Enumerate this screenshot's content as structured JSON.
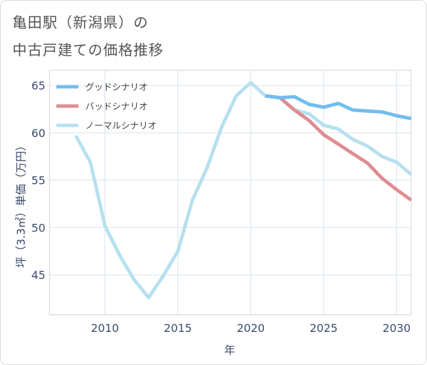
{
  "title": {
    "line1": "亀田駅（新潟県）の",
    "line2": "中古戸建ての価格推移"
  },
  "chart_data": {
    "type": "line",
    "title": "亀田駅（新潟県）の中古戸建ての価格推移",
    "xlabel": "年",
    "ylabel": "坪（3.3㎡）単価（万円）",
    "xlim": [
      2006.2,
      2031
    ],
    "ylim": [
      40.8,
      66.6
    ],
    "xticks": [
      2010,
      2015,
      2020,
      2025,
      2030
    ],
    "yticks": [
      45,
      50,
      55,
      60,
      65
    ],
    "grid": true,
    "legend_position": "top-left",
    "series": [
      {
        "name": "グッドシナリオ",
        "color": "#72bdf0",
        "x": [
          2021,
          2022,
          2023,
          2024,
          2025,
          2026,
          2027,
          2028,
          2029,
          2030,
          2031
        ],
        "y": [
          63.9,
          63.7,
          63.8,
          63.0,
          62.7,
          63.1,
          62.4,
          62.3,
          62.2,
          61.8,
          61.5
        ]
      },
      {
        "name": "バッドシナリオ",
        "color": "#de8d93",
        "x": [
          2021,
          2022,
          2023,
          2024,
          2025,
          2026,
          2027,
          2028,
          2029,
          2030,
          2031
        ],
        "y": [
          63.9,
          63.7,
          62.4,
          61.3,
          59.8,
          58.8,
          57.8,
          56.8,
          55.2,
          54.0,
          52.9
        ]
      },
      {
        "name": "ノーマルシナリオ",
        "color": "#b7e0ef",
        "x": [
          2008,
          2009,
          2010,
          2011,
          2012,
          2013,
          2014,
          2015,
          2016,
          2017,
          2018,
          2019,
          2020,
          2021,
          2022,
          2023,
          2024,
          2025,
          2026,
          2027,
          2028,
          2029,
          2030,
          2031
        ],
        "y": [
          59.7,
          56.9,
          50.2,
          47.1,
          44.5,
          42.6,
          44.9,
          47.5,
          52.9,
          56.3,
          60.6,
          63.9,
          65.3,
          63.9,
          63.7,
          62.4,
          62.0,
          60.8,
          60.4,
          59.3,
          58.6,
          57.5,
          56.9,
          55.6
        ]
      }
    ]
  }
}
